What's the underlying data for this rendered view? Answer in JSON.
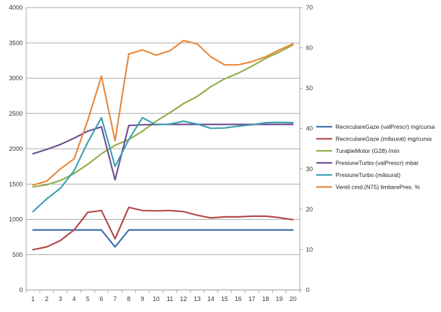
{
  "chart_data": {
    "type": "line",
    "title": "",
    "xlabel": "",
    "ylabel": "",
    "y2label": "",
    "categories": [
      "1",
      "2",
      "3",
      "4",
      "5",
      "6",
      "7",
      "8",
      "9",
      "10",
      "11",
      "12",
      "13",
      "14",
      "15",
      "16",
      "17",
      "18",
      "19",
      "20"
    ],
    "ylim": [
      0,
      4000
    ],
    "y2lim": [
      0,
      70
    ],
    "yticks": [
      "0",
      "500",
      "1000",
      "1500",
      "2000",
      "2500",
      "3000",
      "3500",
      "4000"
    ],
    "y2ticks": [
      "0",
      "10",
      "20",
      "30",
      "40",
      "50",
      "60",
      "70"
    ],
    "grid": true,
    "legend": "right",
    "series": [
      {
        "name": "RecirculareGaze (valPrescr)  mg/cursa",
        "axis": "left",
        "color": "#3f6fab",
        "values": [
          850,
          850,
          850,
          850,
          850,
          850,
          610,
          850,
          850,
          850,
          850,
          850,
          850,
          850,
          850,
          850,
          850,
          850,
          850,
          850
        ]
      },
      {
        "name": "RecirculareGaze (măsurat)  mg/cursa",
        "axis": "left",
        "color": "#b34645",
        "values": [
          570,
          610,
          700,
          850,
          1100,
          1125,
          725,
          1170,
          1125,
          1120,
          1125,
          1110,
          1060,
          1020,
          1035,
          1035,
          1045,
          1045,
          1025,
          995
        ]
      },
      {
        "name": "TuraþieMotor (G28)  /min",
        "axis": "left",
        "color": "#8fae4a",
        "values": [
          1460,
          1490,
          1550,
          1650,
          1780,
          1930,
          2050,
          2130,
          2250,
          2390,
          2510,
          2640,
          2740,
          2880,
          2990,
          3070,
          3170,
          3280,
          3370,
          3470
        ]
      },
      {
        "name": "PresiuneTurbo (valPrescr)  mbar",
        "axis": "left",
        "color": "#6d4e92",
        "values": [
          1930,
          1990,
          2060,
          2150,
          2250,
          2310,
          1560,
          2330,
          2340,
          2345,
          2345,
          2345,
          2345,
          2345,
          2345,
          2345,
          2345,
          2345,
          2345,
          2345
        ]
      },
      {
        "name": "PresiuneTurbo (măsurat)",
        "axis": "left",
        "color": "#3d9fb2",
        "values": [
          1110,
          1290,
          1440,
          1690,
          2090,
          2440,
          1750,
          2130,
          2440,
          2340,
          2350,
          2390,
          2350,
          2290,
          2295,
          2320,
          2340,
          2370,
          2375,
          2370
        ]
      },
      {
        "name": "Ventil cmd.(N75) limitarePres.  %",
        "axis": "right",
        "color": "#e8883a",
        "values": [
          26,
          27,
          30,
          32.5,
          42,
          53,
          37,
          58.5,
          59.5,
          58.2,
          59.3,
          61.8,
          61,
          57.8,
          55.8,
          55.8,
          56.6,
          57.8,
          59.5,
          61
        ]
      }
    ]
  }
}
